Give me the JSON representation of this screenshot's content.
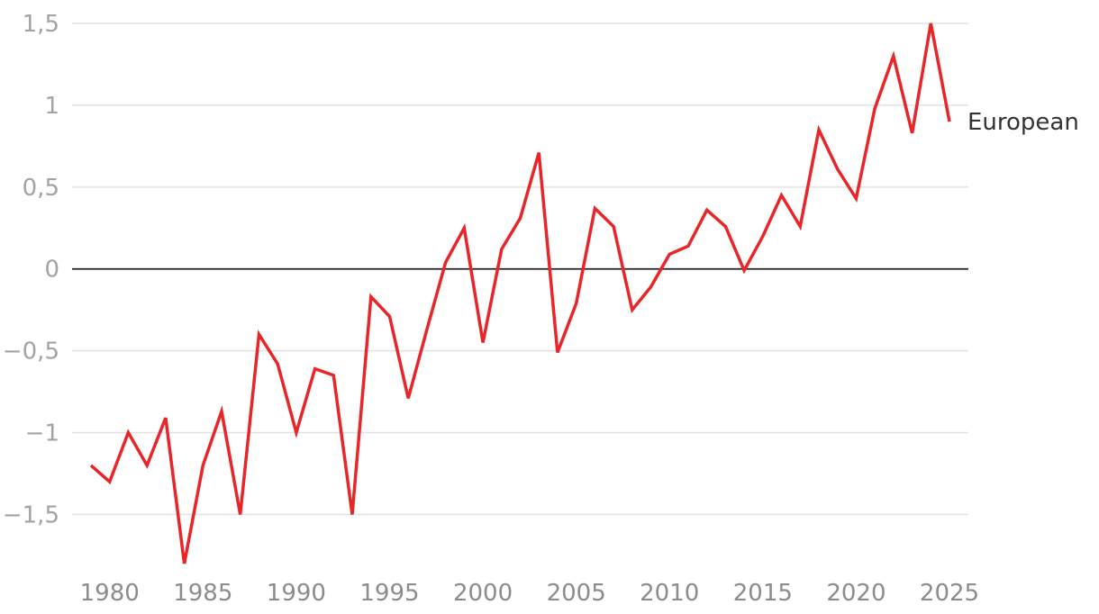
{
  "chart_data": {
    "type": "line",
    "title": "",
    "xlabel": "",
    "ylabel": "",
    "x": [
      1979,
      1980,
      1981,
      1982,
      1983,
      1984,
      1985,
      1986,
      1987,
      1988,
      1989,
      1990,
      1991,
      1992,
      1993,
      1994,
      1995,
      1996,
      1997,
      1998,
      1999,
      2000,
      2001,
      2002,
      2003,
      2004,
      2005,
      2006,
      2007,
      2008,
      2009,
      2010,
      2011,
      2012,
      2013,
      2014,
      2015,
      2016,
      2017,
      2018,
      2019,
      2020,
      2021,
      2022,
      2023,
      2024,
      2025
    ],
    "series": [
      {
        "name": "European",
        "color": "#e8262a",
        "values": [
          -1.2,
          -1.3,
          -1.0,
          -1.2,
          -0.91,
          -1.8,
          -1.2,
          -0.87,
          -1.5,
          -0.4,
          -0.58,
          -1.0,
          -0.61,
          -0.65,
          -1.5,
          -0.17,
          -0.29,
          -0.79,
          -0.37,
          0.04,
          0.25,
          -0.45,
          0.12,
          0.31,
          0.71,
          -0.51,
          -0.21,
          0.37,
          0.26,
          -0.25,
          -0.11,
          0.09,
          0.14,
          0.36,
          0.26,
          -0.01,
          0.2,
          0.45,
          0.26,
          0.85,
          0.61,
          0.43,
          0.98,
          1.3,
          0.83,
          1.5,
          0.9
        ]
      }
    ],
    "xlim": [
      1979,
      2025
    ],
    "ylim": [
      -1.8,
      1.5
    ],
    "xticks": [
      1980,
      1985,
      1990,
      1995,
      2000,
      2005,
      2010,
      2015,
      2020,
      2025
    ],
    "xtick_labels": [
      "1980",
      "1985",
      "1990",
      "1995",
      "2000",
      "2005",
      "2010",
      "2015",
      "2020",
      "2025"
    ],
    "yticks": [
      1.5,
      1,
      0.5,
      0,
      -0.5,
      -1,
      -1.5
    ],
    "ytick_labels": [
      "1,5",
      "1",
      "0,5",
      "0",
      "−0,5",
      "−1",
      "−1,5"
    ],
    "grid": true,
    "zero_line": true,
    "legend": "direct label at end of line"
  }
}
